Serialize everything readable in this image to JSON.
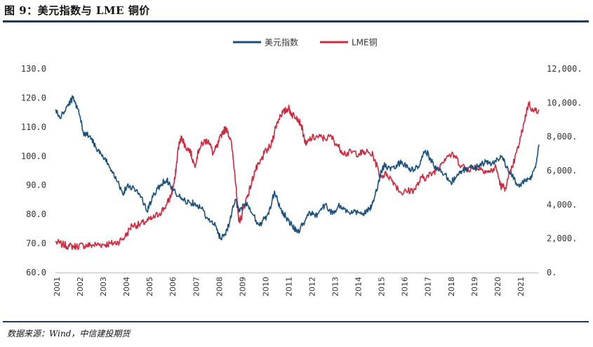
{
  "header": {
    "title": "图 9：美元指数与 LME 铜价"
  },
  "footer": {
    "source": "数据来源：Wind，中信建投期货"
  },
  "colors": {
    "usd": "#1b4f7c",
    "copper": "#cc2a3f",
    "rule": "#1f3a5f"
  },
  "chart_data": {
    "type": "line",
    "title": "图 9：美元指数与 LME 铜价",
    "legend": [
      "美元指数",
      "LME铜"
    ],
    "legend_position": "top-center",
    "x_range": [
      2001.0,
      2021.85
    ],
    "y_left": {
      "lim": [
        60,
        130
      ],
      "ticks": [
        "130.0",
        "120.0",
        "110.0",
        "100.0",
        "90.0",
        "80.0",
        "70.0",
        "60.0"
      ],
      "tick_values": [
        130,
        120,
        110,
        100,
        90,
        80,
        70,
        60
      ]
    },
    "y_right": {
      "lim": [
        0,
        12000
      ],
      "ticks": [
        "12,000.",
        "10,000.",
        "8,000.",
        "6,000.",
        "4,000.",
        "2,000.",
        "0."
      ],
      "tick_values": [
        12000,
        10000,
        8000,
        6000,
        4000,
        2000,
        0
      ]
    },
    "x_ticks": [
      "2001",
      "2002",
      "2003",
      "2004",
      "2005",
      "2006",
      "2007",
      "2008",
      "2009",
      "2010",
      "2011",
      "2012",
      "2013",
      "2014",
      "2015",
      "2016",
      "2017",
      "2018",
      "2019",
      "2020",
      "2021"
    ],
    "series": [
      {
        "name": "美元指数",
        "axis": "left",
        "color": "#1b4f7c",
        "x": [
          2001.0,
          2001.2,
          2001.5,
          2001.75,
          2002.0,
          2002.2,
          2002.5,
          2002.75,
          2003.0,
          2003.3,
          2003.6,
          2003.9,
          2004.1,
          2004.4,
          2004.7,
          2004.95,
          2005.2,
          2005.5,
          2005.8,
          2005.95,
          2006.2,
          2006.5,
          2006.8,
          2007.0,
          2007.3,
          2007.6,
          2007.9,
          2008.1,
          2008.3,
          2008.5,
          2008.75,
          2008.95,
          2009.2,
          2009.5,
          2009.8,
          2009.95,
          2010.2,
          2010.45,
          2010.7,
          2010.95,
          2011.2,
          2011.45,
          2011.7,
          2011.95,
          2012.2,
          2012.45,
          2012.7,
          2012.95,
          2013.2,
          2013.45,
          2013.7,
          2013.95,
          2014.2,
          2014.45,
          2014.65,
          2014.85,
          2015.05,
          2015.2,
          2015.45,
          2015.7,
          2015.95,
          2016.2,
          2016.45,
          2016.7,
          2016.95,
          2017.1,
          2017.3,
          2017.55,
          2017.8,
          2018.05,
          2018.3,
          2018.55,
          2018.8,
          2019.05,
          2019.3,
          2019.55,
          2019.8,
          2020.05,
          2020.25,
          2020.45,
          2020.7,
          2020.95,
          2021.2,
          2021.45,
          2021.7,
          2021.85
        ],
        "values": [
          116,
          113,
          117,
          120,
          116,
          108,
          107,
          103,
          100,
          97,
          93,
          87,
          90,
          89,
          86,
          81,
          86,
          90,
          92,
          90,
          87,
          85,
          84,
          84,
          82,
          78,
          76,
          72,
          73,
          77,
          85,
          81,
          84,
          80,
          76,
          78,
          80,
          88,
          82,
          79,
          76,
          74,
          77,
          81,
          79,
          82,
          83,
          80,
          83,
          82,
          80,
          81,
          80,
          81,
          83,
          88,
          95,
          97,
          95,
          97,
          98,
          96,
          95,
          97,
          102,
          100,
          97,
          95,
          94,
          91,
          93,
          95,
          96,
          96,
          97,
          98,
          97,
          99,
          100,
          96,
          93,
          90,
          91,
          92,
          96,
          104
        ]
      },
      {
        "name": "LME铜",
        "axis": "right",
        "color": "#cc2a3f",
        "x": [
          2001.0,
          2001.3,
          2001.6,
          2001.9,
          2002.2,
          2002.5,
          2002.8,
          2003.1,
          2003.4,
          2003.7,
          2004.0,
          2004.3,
          2004.6,
          2004.9,
          2005.2,
          2005.5,
          2005.8,
          2006.0,
          2006.15,
          2006.3,
          2006.45,
          2006.6,
          2006.8,
          2007.0,
          2007.2,
          2007.4,
          2007.6,
          2007.8,
          2008.0,
          2008.2,
          2008.4,
          2008.6,
          2008.8,
          2008.9,
          2009.0,
          2009.2,
          2009.4,
          2009.6,
          2009.8,
          2010.0,
          2010.3,
          2010.5,
          2010.7,
          2010.9,
          2011.05,
          2011.2,
          2011.4,
          2011.6,
          2011.8,
          2012.0,
          2012.3,
          2012.6,
          2012.9,
          2013.2,
          2013.5,
          2013.8,
          2014.1,
          2014.4,
          2014.7,
          2015.0,
          2015.3,
          2015.6,
          2015.9,
          2016.2,
          2016.5,
          2016.8,
          2017.0,
          2017.3,
          2017.6,
          2017.9,
          2018.2,
          2018.5,
          2018.8,
          2019.1,
          2019.4,
          2019.7,
          2020.0,
          2020.2,
          2020.4,
          2020.7,
          2021.0,
          2021.2,
          2021.4,
          2021.6,
          2021.85
        ],
        "values": [
          1800,
          1650,
          1550,
          1550,
          1600,
          1600,
          1650,
          1650,
          1700,
          1800,
          2100,
          2800,
          2800,
          3000,
          3200,
          3500,
          4000,
          4600,
          5500,
          7400,
          8000,
          7400,
          7200,
          6300,
          7300,
          7700,
          7800,
          7000,
          7500,
          8300,
          8500,
          7500,
          5000,
          3000,
          3200,
          4200,
          5000,
          6000,
          6400,
          7000,
          7500,
          8600,
          9300,
          9500,
          9700,
          9300,
          9200,
          8700,
          7500,
          7900,
          8000,
          7900,
          8000,
          7400,
          7000,
          7100,
          7000,
          7100,
          6900,
          5700,
          5800,
          5300,
          4700,
          4800,
          4900,
          5600,
          5600,
          5900,
          6400,
          6900,
          6900,
          6300,
          6100,
          6200,
          6100,
          5900,
          6200,
          5100,
          5000,
          6200,
          7600,
          8800,
          10000,
          9500,
          9600
        ]
      }
    ]
  }
}
